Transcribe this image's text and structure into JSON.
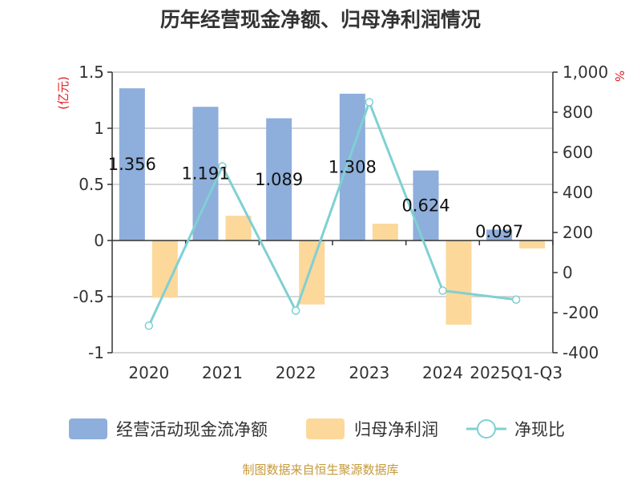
{
  "chart_data": {
    "type": "bar+line",
    "title": "历年经营现金净额、归母净利润情况",
    "y_left_label": "(亿元)",
    "y_right_label": "%",
    "categories": [
      "2020",
      "2021",
      "2022",
      "2023",
      "2024",
      "2025Q1-Q3"
    ],
    "y_left": {
      "min": -1,
      "max": 1.5,
      "ticks": [
        "1.5",
        "1",
        "0.5",
        "0",
        "-0.5",
        "-1"
      ],
      "tick_values": [
        1.5,
        1,
        0.5,
        0,
        -0.5,
        -1
      ]
    },
    "y_right": {
      "min": -400,
      "max": 1000,
      "ticks": [
        "1,000",
        "800",
        "600",
        "400",
        "200",
        "0",
        "-200",
        "-400"
      ],
      "tick_values": [
        1000,
        800,
        600,
        400,
        200,
        0,
        -200,
        -400
      ]
    },
    "grid": true,
    "legend_position": "bottom",
    "series": [
      {
        "name": "经营活动现金流净额",
        "kind": "bar",
        "axis": "left",
        "color": "#8eaedb",
        "values": [
          1.356,
          1.191,
          1.089,
          1.308,
          0.624,
          0.097
        ],
        "labels": [
          "1.356",
          "1.191",
          "1.089",
          "1.308",
          "0.624",
          "0.097"
        ]
      },
      {
        "name": "归母净利润",
        "kind": "bar",
        "axis": "left",
        "color": "#fcd89b",
        "values": [
          -0.51,
          0.22,
          -0.57,
          0.15,
          -0.75,
          -0.07
        ]
      },
      {
        "name": "净现比",
        "kind": "line",
        "axis": "right",
        "color": "#7fd0d3",
        "values": [
          -265,
          530,
          -190,
          850,
          -90,
          -135
        ]
      }
    ],
    "source": "制图数据来自恒生聚源数据库"
  }
}
